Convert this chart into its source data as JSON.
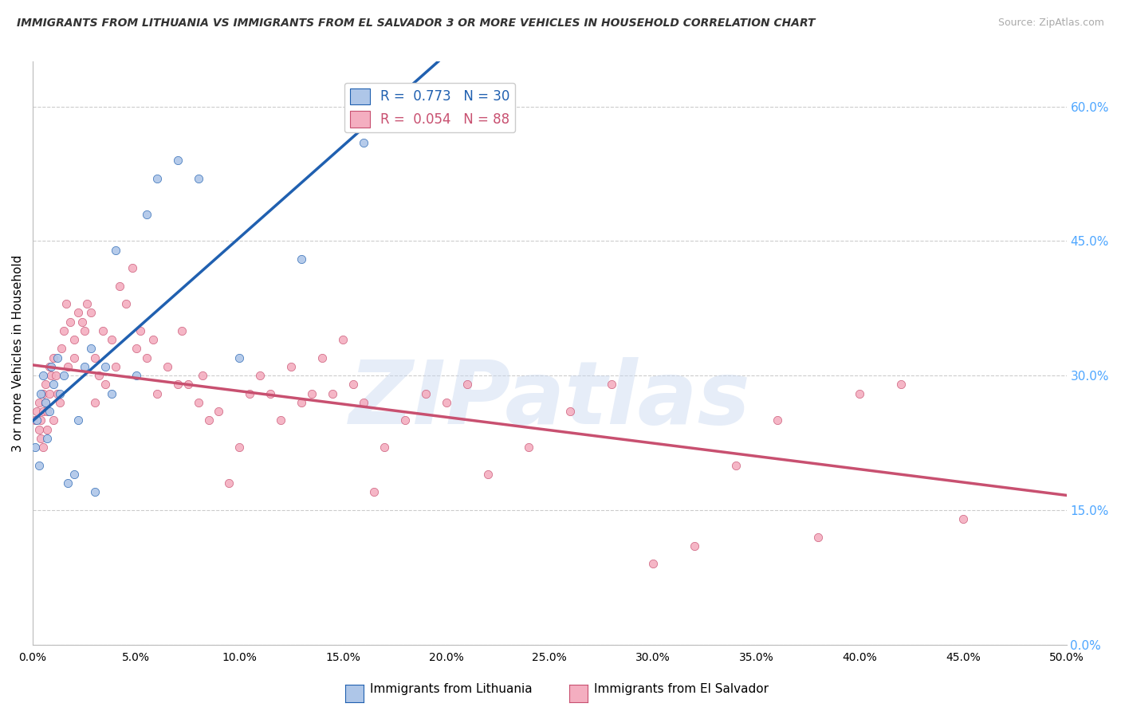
{
  "title": "IMMIGRANTS FROM LITHUANIA VS IMMIGRANTS FROM EL SALVADOR 3 OR MORE VEHICLES IN HOUSEHOLD CORRELATION CHART",
  "source": "Source: ZipAtlas.com",
  "ylabel": "3 or more Vehicles in Household",
  "legend_label_1": "Immigrants from Lithuania",
  "legend_label_2": "Immigrants from El Salvador",
  "R1": 0.773,
  "N1": 30,
  "R2": 0.054,
  "N2": 88,
  "color1": "#aec6e8",
  "color2": "#f4aec0",
  "line_color1": "#2060b0",
  "line_color2": "#c85070",
  "right_axis_color": "#4da6ff",
  "xlim": [
    0.0,
    0.5
  ],
  "plot_ylim": [
    0.0,
    0.65
  ],
  "xticks": [
    0.0,
    0.05,
    0.1,
    0.15,
    0.2,
    0.25,
    0.3,
    0.35,
    0.4,
    0.45,
    0.5
  ],
  "yticks_right": [
    0.0,
    0.15,
    0.3,
    0.45,
    0.6
  ],
  "watermark": "ZIPatlas",
  "lithuania_x": [
    0.001,
    0.002,
    0.003,
    0.004,
    0.005,
    0.006,
    0.007,
    0.008,
    0.009,
    0.01,
    0.012,
    0.013,
    0.015,
    0.017,
    0.02,
    0.022,
    0.025,
    0.028,
    0.03,
    0.035,
    0.038,
    0.04,
    0.05,
    0.055,
    0.06,
    0.07,
    0.08,
    0.1,
    0.13,
    0.16
  ],
  "lithuania_y": [
    0.22,
    0.25,
    0.2,
    0.28,
    0.3,
    0.27,
    0.23,
    0.26,
    0.31,
    0.29,
    0.32,
    0.28,
    0.3,
    0.18,
    0.19,
    0.25,
    0.31,
    0.33,
    0.17,
    0.31,
    0.28,
    0.44,
    0.3,
    0.48,
    0.52,
    0.54,
    0.52,
    0.32,
    0.43,
    0.56
  ],
  "salvador_x": [
    0.001,
    0.002,
    0.003,
    0.003,
    0.004,
    0.004,
    0.005,
    0.005,
    0.005,
    0.006,
    0.006,
    0.007,
    0.007,
    0.008,
    0.008,
    0.009,
    0.01,
    0.01,
    0.011,
    0.012,
    0.013,
    0.014,
    0.015,
    0.016,
    0.017,
    0.018,
    0.02,
    0.02,
    0.022,
    0.024,
    0.025,
    0.026,
    0.028,
    0.03,
    0.03,
    0.032,
    0.034,
    0.035,
    0.038,
    0.04,
    0.042,
    0.045,
    0.048,
    0.05,
    0.052,
    0.055,
    0.058,
    0.06,
    0.065,
    0.07,
    0.072,
    0.075,
    0.08,
    0.082,
    0.085,
    0.09,
    0.095,
    0.1,
    0.105,
    0.11,
    0.115,
    0.12,
    0.125,
    0.13,
    0.135,
    0.14,
    0.145,
    0.15,
    0.155,
    0.16,
    0.165,
    0.17,
    0.18,
    0.19,
    0.2,
    0.21,
    0.22,
    0.24,
    0.26,
    0.28,
    0.3,
    0.32,
    0.34,
    0.36,
    0.38,
    0.4,
    0.42,
    0.45
  ],
  "salvador_y": [
    0.25,
    0.26,
    0.24,
    0.27,
    0.25,
    0.23,
    0.28,
    0.22,
    0.26,
    0.27,
    0.29,
    0.24,
    0.26,
    0.31,
    0.28,
    0.3,
    0.32,
    0.25,
    0.3,
    0.28,
    0.27,
    0.33,
    0.35,
    0.38,
    0.31,
    0.36,
    0.34,
    0.32,
    0.37,
    0.36,
    0.35,
    0.38,
    0.37,
    0.27,
    0.32,
    0.3,
    0.35,
    0.29,
    0.34,
    0.31,
    0.4,
    0.38,
    0.42,
    0.33,
    0.35,
    0.32,
    0.34,
    0.28,
    0.31,
    0.29,
    0.35,
    0.29,
    0.27,
    0.3,
    0.25,
    0.26,
    0.18,
    0.22,
    0.28,
    0.3,
    0.28,
    0.25,
    0.31,
    0.27,
    0.28,
    0.32,
    0.28,
    0.34,
    0.29,
    0.27,
    0.17,
    0.22,
    0.25,
    0.28,
    0.27,
    0.29,
    0.19,
    0.22,
    0.26,
    0.29,
    0.09,
    0.11,
    0.2,
    0.25,
    0.12,
    0.28,
    0.29,
    0.14
  ]
}
